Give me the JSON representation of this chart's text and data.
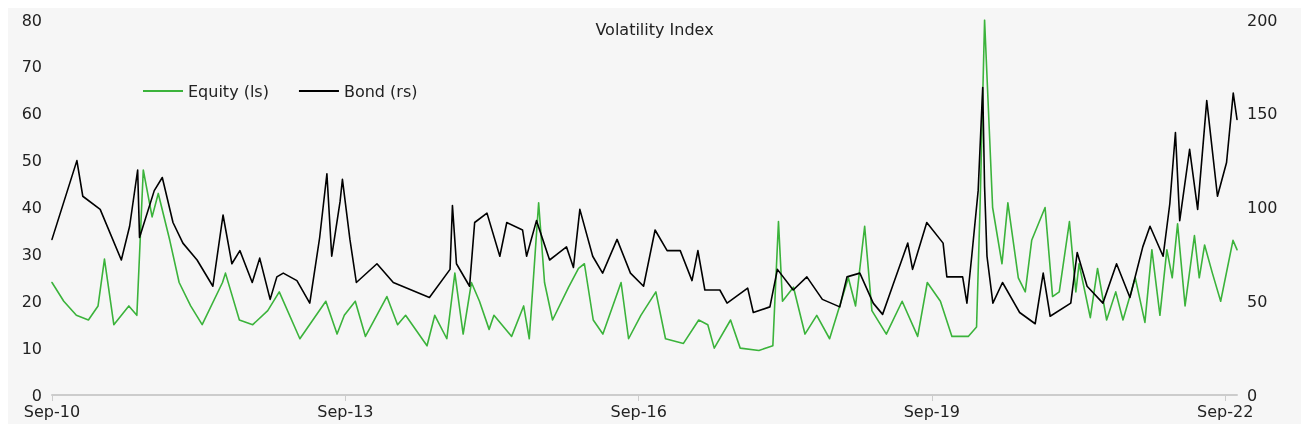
{
  "chart_data": {
    "type": "line",
    "title": "Volatility Index",
    "legend": "top left",
    "grid": false,
    "marker": "none",
    "line_style": "solid",
    "xlim": [
      "2010-09-01",
      "2022-10-15"
    ],
    "xticks": [
      {
        "value": "2010-09-01",
        "label": "Sep-10"
      },
      {
        "value": "2013-09-01",
        "label": "Sep-13"
      },
      {
        "value": "2016-09-01",
        "label": "Sep-16"
      },
      {
        "value": "2019-09-01",
        "label": "Sep-19"
      },
      {
        "value": "2022-09-01",
        "label": "Sep-22"
      }
    ],
    "ylim": [
      0,
      80
    ],
    "yticks": [
      0,
      10,
      20,
      30,
      40,
      50,
      60,
      70,
      80
    ],
    "y2lim": [
      0,
      200
    ],
    "y2ticks": [
      0,
      50,
      100,
      150,
      200
    ],
    "series": [
      {
        "name": "Equity (ls)",
        "color": "#3bb33b",
        "x": [
          "2010-09-01",
          "2010-10-15",
          "2010-12-01",
          "2011-01-15",
          "2011-02-20",
          "2011-03-16",
          "2011-04-20",
          "2011-06-15",
          "2011-07-15",
          "2011-08-08",
          "2011-09-10",
          "2011-10-03",
          "2011-11-15",
          "2011-12-20",
          "2012-02-01",
          "2012-03-15",
          "2012-05-30",
          "2012-06-10",
          "2012-08-01",
          "2012-09-20",
          "2012-11-15",
          "2012-12-28",
          "2013-03-15",
          "2013-06-20",
          "2013-08-01",
          "2013-08-28",
          "2013-10-08",
          "2013-11-15",
          "2014-02-03",
          "2014-03-15",
          "2014-04-14",
          "2014-07-03",
          "2014-08-01",
          "2014-09-15",
          "2014-10-15",
          "2014-11-15",
          "2014-12-16",
          "2015-01-15",
          "2015-02-20",
          "2015-03-10",
          "2015-05-15",
          "2015-06-29",
          "2015-07-20",
          "2015-08-24",
          "2015-09-15",
          "2015-10-15",
          "2015-12-14",
          "2016-01-20",
          "2016-02-11",
          "2016-03-15",
          "2016-04-20",
          "2016-06-27",
          "2016-07-25",
          "2016-09-09",
          "2016-11-04",
          "2016-12-10",
          "2017-02-15",
          "2017-04-13",
          "2017-05-17",
          "2017-06-10",
          "2017-08-10",
          "2017-09-15",
          "2017-11-24",
          "2018-01-15",
          "2018-02-05",
          "2018-02-20",
          "2018-04-02",
          "2018-05-15",
          "2018-06-28",
          "2018-08-15",
          "2018-10-24",
          "2018-11-20",
          "2018-12-24",
          "2019-01-20",
          "2019-03-15",
          "2019-05-13",
          "2019-07-10",
          "2019-08-15",
          "2019-10-03",
          "2019-11-15",
          "2020-01-15",
          "2020-02-15",
          "2020-02-28",
          "2020-03-16",
          "2020-04-15",
          "2020-05-20",
          "2020-06-11",
          "2020-07-20",
          "2020-08-15",
          "2020-09-08",
          "2020-10-28",
          "2020-11-25",
          "2020-12-20",
          "2021-01-27",
          "2021-02-20",
          "2021-03-04",
          "2021-04-15",
          "2021-05-12",
          "2021-06-15",
          "2021-07-19",
          "2021-08-15",
          "2021-09-30",
          "2021-11-05",
          "2021-12-01",
          "2021-12-31",
          "2022-01-26",
          "2022-02-15",
          "2022-03-07",
          "2022-04-04",
          "2022-05-09",
          "2022-05-27",
          "2022-06-16",
          "2022-07-15",
          "2022-08-15",
          "2022-09-30",
          "2022-10-15"
        ],
        "values": [
          24,
          20,
          17,
          16,
          19,
          29,
          15,
          19,
          17,
          48,
          38,
          43,
          33,
          24,
          19,
          15,
          24,
          26,
          16,
          15,
          18,
          22,
          12,
          20,
          13,
          17,
          20,
          12.5,
          21,
          15,
          17,
          10.5,
          17,
          12,
          26,
          13,
          24,
          20,
          14,
          17,
          12.5,
          19,
          12,
          41,
          24,
          16,
          23,
          27,
          28,
          16,
          13,
          24,
          12,
          17,
          22,
          12,
          11,
          16,
          15,
          10,
          16,
          10,
          9.5,
          10.5,
          37,
          20,
          23,
          13,
          17,
          12,
          25,
          19,
          36,
          18,
          13,
          20,
          12.5,
          24,
          20,
          12.5,
          12.5,
          14.5,
          40,
          80,
          40,
          28,
          41,
          25,
          22,
          33,
          40,
          21,
          22,
          37,
          22,
          28,
          16.5,
          27,
          16,
          22,
          16,
          25,
          15.5,
          31,
          17,
          31,
          25,
          36.5,
          19,
          34,
          25,
          32,
          26,
          20,
          33,
          31
        ]
      },
      {
        "name": "Bond (rs)",
        "color": "#000000",
        "axis": "y2",
        "x": [
          "2010-09-01",
          "2010-12-03",
          "2010-12-25",
          "2011-02-28",
          "2011-05-18",
          "2011-06-18",
          "2011-07-18",
          "2011-07-25",
          "2011-09-18",
          "2011-10-18",
          "2011-11-27",
          "2012-01-03",
          "2012-02-25",
          "2012-04-24",
          "2012-06-01",
          "2012-07-04",
          "2012-08-03",
          "2012-09-18",
          "2012-10-16",
          "2012-11-24",
          "2012-12-19",
          "2013-01-12",
          "2013-03-04",
          "2013-04-21",
          "2013-05-28",
          "2013-06-24",
          "2013-07-12",
          "2013-08-12",
          "2013-08-21",
          "2013-09-18",
          "2013-10-12",
          "2013-12-28",
          "2014-02-27",
          "2014-07-12",
          "2014-09-27",
          "2014-10-06",
          "2014-10-21",
          "2014-12-09",
          "2014-12-28",
          "2015-02-12",
          "2015-04-01",
          "2015-04-27",
          "2015-06-25",
          "2015-07-10",
          "2015-08-16",
          "2015-10-04",
          "2015-12-06",
          "2016-01-01",
          "2016-01-25",
          "2016-03-13",
          "2016-04-19",
          "2016-06-12",
          "2016-08-01",
          "2016-09-19",
          "2016-11-01",
          "2016-12-16",
          "2017-02-03",
          "2017-03-19",
          "2017-04-10",
          "2017-05-06",
          "2017-07-01",
          "2017-07-28",
          "2017-10-13",
          "2017-11-03",
          "2018-01-04",
          "2018-02-01",
          "2018-04-01",
          "2018-05-22",
          "2018-07-19",
          "2018-09-22",
          "2018-10-19",
          "2018-12-06",
          "2019-01-25",
          "2019-03-01",
          "2019-04-07",
          "2019-06-03",
          "2019-06-21",
          "2019-08-13",
          "2019-10-13",
          "2019-10-27",
          "2019-12-25",
          "2020-01-10",
          "2020-01-28",
          "2020-02-21",
          "2020-03-09",
          "2020-03-16",
          "2020-03-25",
          "2020-04-16",
          "2020-05-22",
          "2020-07-25",
          "2020-09-21",
          "2020-10-21",
          "2020-11-16",
          "2021-02-01",
          "2021-02-25",
          "2021-04-03",
          "2021-06-01",
          "2021-07-22",
          "2021-09-10",
          "2021-10-28",
          "2021-11-24",
          "2022-01-12",
          "2022-02-06",
          "2022-02-27",
          "2022-03-15",
          "2022-04-21",
          "2022-05-21",
          "2022-06-24",
          "2022-08-03",
          "2022-09-06",
          "2022-10-01",
          "2022-10-15"
        ],
        "values": [
          83,
          125,
          106,
          99,
          72,
          90,
          120,
          84,
          109,
          116,
          92,
          81,
          72,
          58,
          96,
          70,
          77,
          60,
          73,
          51,
          63,
          65,
          61,
          49,
          84,
          118,
          74,
          103,
          115,
          83,
          60,
          70,
          60,
          52,
          67,
          101,
          70,
          58,
          92,
          97,
          74,
          92,
          88,
          74,
          93,
          72,
          79,
          68,
          99,
          74,
          65,
          83,
          65,
          58,
          88,
          77,
          77,
          61,
          77,
          56,
          56,
          49,
          57,
          44,
          47,
          67,
          56,
          63,
          51,
          47,
          63,
          65,
          49,
          43,
          58,
          81,
          67,
          92,
          81,
          63,
          63,
          49,
          74,
          109,
          164,
          111,
          74,
          49,
          60,
          44,
          38,
          65,
          42,
          49,
          76,
          58,
          49,
          70,
          52,
          79,
          90,
          74,
          102,
          140,
          93,
          131,
          99,
          157,
          106,
          124,
          161,
          147
        ]
      }
    ]
  }
}
